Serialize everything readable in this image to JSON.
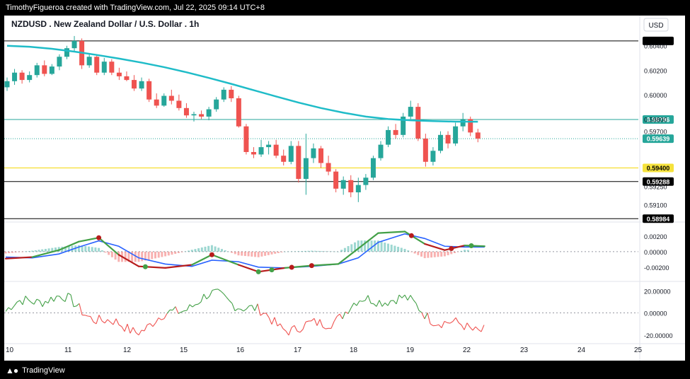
{
  "header": {
    "caption": "TimothyFigueroa created with TradingView.com, Jul 22, 2025 09:14 UTC+8"
  },
  "footer": {
    "brand": "TradingView"
  },
  "chart_data": {
    "type": "candlestick",
    "title": "NZDUSD . New Zealand Dollar / U.S. Dollar . 1h",
    "currency": "USD",
    "x_ticks": [
      "10",
      "11",
      "12",
      "15",
      "16",
      "17",
      "18",
      "19",
      "22",
      "23",
      "24",
      "25"
    ],
    "price_axis": {
      "ticks": [
        "0.60400",
        "0.60200",
        "0.60000",
        "0.59800",
        "0.59700",
        "0.59250",
        "0.59100"
      ],
      "ylim": [
        0.5898,
        0.6052
      ]
    },
    "horizontal_levels": [
      {
        "label": "0.59796",
        "value": 0.59796,
        "color": "#26a69a",
        "style": "solid",
        "badge_bg": "#26a69a",
        "badge_fg": "#ffffff"
      },
      {
        "label": "0.59639",
        "value": 0.59639,
        "color": "#26a69a",
        "style": "dotted",
        "badge_bg": "#26a69a",
        "badge_fg": "#ffffff"
      },
      {
        "label": "0.59400",
        "value": 0.594,
        "color": "#f5d90a",
        "style": "solid",
        "badge_bg": "#f5e23c",
        "badge_fg": "#000000"
      },
      {
        "label": "0.59288",
        "value": 0.59288,
        "color": "#000000",
        "style": "solid",
        "badge_bg": "#000000",
        "badge_fg": "#ffffff"
      },
      {
        "label": "0.58984",
        "value": 0.58984,
        "color": "#000000",
        "style": "solid",
        "badge_bg": "#000000",
        "badge_fg": "#ffffff"
      },
      {
        "label": "",
        "value": 0.6044,
        "color": "#000000",
        "style": "solid",
        "badge_bg": "#000000",
        "badge_fg": "#ffffff"
      }
    ],
    "moving_average": {
      "color": "#1fbcc8",
      "points": [
        [
          0,
          0.604
        ],
        [
          3,
          0.60392
        ],
        [
          6,
          0.60375
        ],
        [
          9,
          0.60352
        ],
        [
          12,
          0.60325
        ],
        [
          15,
          0.60295
        ],
        [
          18,
          0.60262
        ],
        [
          21,
          0.60225
        ],
        [
          24,
          0.60183
        ],
        [
          27,
          0.60137
        ],
        [
          30,
          0.60088
        ],
        [
          33,
          0.60036
        ],
        [
          36,
          0.59985
        ],
        [
          39,
          0.59935
        ],
        [
          42,
          0.5989
        ],
        [
          45,
          0.59852
        ],
        [
          48,
          0.5982
        ],
        [
          51,
          0.598
        ],
        [
          54,
          0.5979
        ],
        [
          57,
          0.59783
        ],
        [
          60,
          0.59779
        ],
        [
          63,
          0.59778
        ]
      ]
    },
    "candles": [
      [
        0,
        0.6006,
        0.6014,
        0.6003,
        0.6011
      ],
      [
        1,
        0.6011,
        0.6021,
        0.6008,
        0.6018
      ],
      [
        2,
        0.6018,
        0.602,
        0.6009,
        0.6012
      ],
      [
        3,
        0.6012,
        0.6019,
        0.601,
        0.6016
      ],
      [
        4,
        0.6016,
        0.6026,
        0.6014,
        0.6024
      ],
      [
        5,
        0.6024,
        0.6028,
        0.6015,
        0.6017
      ],
      [
        6,
        0.6017,
        0.6025,
        0.6016,
        0.6023
      ],
      [
        7,
        0.6023,
        0.6033,
        0.602,
        0.6031
      ],
      [
        8,
        0.6031,
        0.604,
        0.6029,
        0.6038
      ],
      [
        9,
        0.6038,
        0.6048,
        0.6035,
        0.6044
      ],
      [
        10,
        0.6044,
        0.6046,
        0.6021,
        0.6024
      ],
      [
        11,
        0.6024,
        0.6034,
        0.6022,
        0.6031
      ],
      [
        12,
        0.6031,
        0.6033,
        0.6016,
        0.6018
      ],
      [
        13,
        0.6018,
        0.603,
        0.6016,
        0.6027
      ],
      [
        14,
        0.6027,
        0.6029,
        0.6016,
        0.6018
      ],
      [
        15,
        0.6018,
        0.6022,
        0.6012,
        0.6015
      ],
      [
        16,
        0.6015,
        0.6019,
        0.6011,
        0.6012
      ],
      [
        17,
        0.6012,
        0.6016,
        0.6003,
        0.6005
      ],
      [
        18,
        0.6005,
        0.6014,
        0.6003,
        0.6011
      ],
      [
        19,
        0.6011,
        0.6013,
        0.5994,
        0.5996
      ],
      [
        20,
        0.5996,
        0.6001,
        0.5989,
        0.5991
      ],
      [
        21,
        0.5991,
        0.6001,
        0.599,
        0.5999
      ],
      [
        22,
        0.5999,
        0.6004,
        0.5992,
        0.5995
      ],
      [
        23,
        0.5995,
        0.6,
        0.5987,
        0.5989
      ],
      [
        24,
        0.5989,
        0.5993,
        0.5981,
        0.5983
      ],
      [
        25,
        0.5983,
        0.5986,
        0.5978,
        0.5984
      ],
      [
        26,
        0.5984,
        0.5987,
        0.598,
        0.5982
      ],
      [
        27,
        0.5982,
        0.599,
        0.5979,
        0.5988
      ],
      [
        28,
        0.5988,
        0.5998,
        0.5986,
        0.5996
      ],
      [
        29,
        0.5996,
        0.6006,
        0.5994,
        0.6004
      ],
      [
        30,
        0.6004,
        0.6007,
        0.5994,
        0.5997
      ],
      [
        31,
        0.5997,
        0.5999,
        0.5973,
        0.5974
      ],
      [
        32,
        0.5974,
        0.5976,
        0.5951,
        0.5953
      ],
      [
        33,
        0.5953,
        0.5957,
        0.5948,
        0.5951
      ],
      [
        34,
        0.5951,
        0.5963,
        0.5949,
        0.5957
      ],
      [
        35,
        0.5957,
        0.5962,
        0.5951,
        0.5959
      ],
      [
        36,
        0.5959,
        0.5963,
        0.5948,
        0.595
      ],
      [
        37,
        0.595,
        0.5955,
        0.5942,
        0.5945
      ],
      [
        38,
        0.5945,
        0.5962,
        0.5943,
        0.5958
      ],
      [
        39,
        0.5958,
        0.5962,
        0.5928,
        0.5931
      ],
      [
        40,
        0.5931,
        0.5968,
        0.5918,
        0.5948
      ],
      [
        41,
        0.5948,
        0.596,
        0.5944,
        0.5956
      ],
      [
        42,
        0.5956,
        0.5958,
        0.594,
        0.5944
      ],
      [
        43,
        0.5944,
        0.595,
        0.5934,
        0.5937
      ],
      [
        44,
        0.5937,
        0.5939,
        0.592,
        0.5923
      ],
      [
        45,
        0.5923,
        0.5933,
        0.5918,
        0.593
      ],
      [
        46,
        0.593,
        0.5934,
        0.5916,
        0.592
      ],
      [
        47,
        0.592,
        0.5932,
        0.5912,
        0.5926
      ],
      [
        48,
        0.5926,
        0.5935,
        0.5922,
        0.5932
      ],
      [
        49,
        0.5932,
        0.595,
        0.593,
        0.5948
      ],
      [
        50,
        0.5948,
        0.5962,
        0.5946,
        0.5959
      ],
      [
        51,
        0.5959,
        0.5974,
        0.5957,
        0.5971
      ],
      [
        52,
        0.5971,
        0.5976,
        0.5964,
        0.5967
      ],
      [
        53,
        0.5967,
        0.5985,
        0.5965,
        0.5982
      ],
      [
        54,
        0.5982,
        0.5995,
        0.598,
        0.599
      ],
      [
        55,
        0.599,
        0.5993,
        0.5962,
        0.5964
      ],
      [
        56,
        0.5964,
        0.5968,
        0.5941,
        0.5945
      ],
      [
        57,
        0.5945,
        0.5957,
        0.5942,
        0.5954
      ],
      [
        58,
        0.5954,
        0.597,
        0.5952,
        0.5967
      ],
      [
        59,
        0.5967,
        0.597,
        0.5956,
        0.596
      ],
      [
        60,
        0.596,
        0.5977,
        0.5958,
        0.5974
      ],
      [
        61,
        0.5974,
        0.5985,
        0.597,
        0.598
      ],
      [
        62,
        0.598,
        0.5982,
        0.5966,
        0.5969
      ],
      [
        63,
        0.5969,
        0.5972,
        0.5961,
        0.5964
      ]
    ],
    "oscillator_1": {
      "ticks": [
        "0.00200",
        "0.00000",
        "-0.00200"
      ],
      "ylim": [
        -0.0033,
        0.0031
      ],
      "fast_line": [
        [
          0,
          -0.0009
        ],
        [
          4,
          -0.0007
        ],
        [
          8,
          0.0002
        ],
        [
          11,
          0.0013
        ],
        [
          14,
          0.0018
        ],
        [
          17,
          -0.0004
        ],
        [
          20,
          -0.0019
        ],
        [
          24,
          -0.0021
        ],
        [
          28,
          -0.0017
        ],
        [
          31,
          -0.0004
        ],
        [
          35,
          -0.0017
        ],
        [
          38,
          -0.0026
        ],
        [
          42,
          -0.0021
        ],
        [
          46,
          -0.0018
        ],
        [
          50,
          -0.0016
        ],
        [
          53,
          0.0004
        ],
        [
          56,
          0.0024
        ],
        [
          60,
          0.0026
        ],
        [
          63,
          0.001
        ],
        [
          66,
          0.0002
        ],
        [
          69,
          0.0008
        ],
        [
          72,
          0.0007
        ]
      ],
      "slow_line": [
        [
          0,
          -0.0007
        ],
        [
          4,
          -0.0008
        ],
        [
          8,
          -0.0003
        ],
        [
          11,
          0.0006
        ],
        [
          14,
          0.0014
        ],
        [
          17,
          0.0007
        ],
        [
          20,
          -0.0008
        ],
        [
          24,
          -0.0016
        ],
        [
          28,
          -0.0019
        ],
        [
          31,
          -0.0011
        ],
        [
          35,
          -0.0013
        ],
        [
          38,
          -0.002
        ],
        [
          42,
          -0.0021
        ],
        [
          46,
          -0.0019
        ],
        [
          50,
          -0.0016
        ],
        [
          53,
          -0.0008
        ],
        [
          56,
          0.0012
        ],
        [
          60,
          0.0023
        ],
        [
          63,
          0.0017
        ],
        [
          66,
          0.0007
        ],
        [
          69,
          0.0006
        ],
        [
          72,
          0.0006
        ]
      ],
      "markers_red": [
        14,
        31,
        43,
        46,
        61,
        67
      ],
      "markers_green": [
        21,
        38,
        40,
        70
      ]
    },
    "oscillator_2": {
      "ticks": [
        "20.00000",
        "0.00000",
        "-20.00000"
      ],
      "ylim": [
        -24,
        26
      ]
    }
  }
}
